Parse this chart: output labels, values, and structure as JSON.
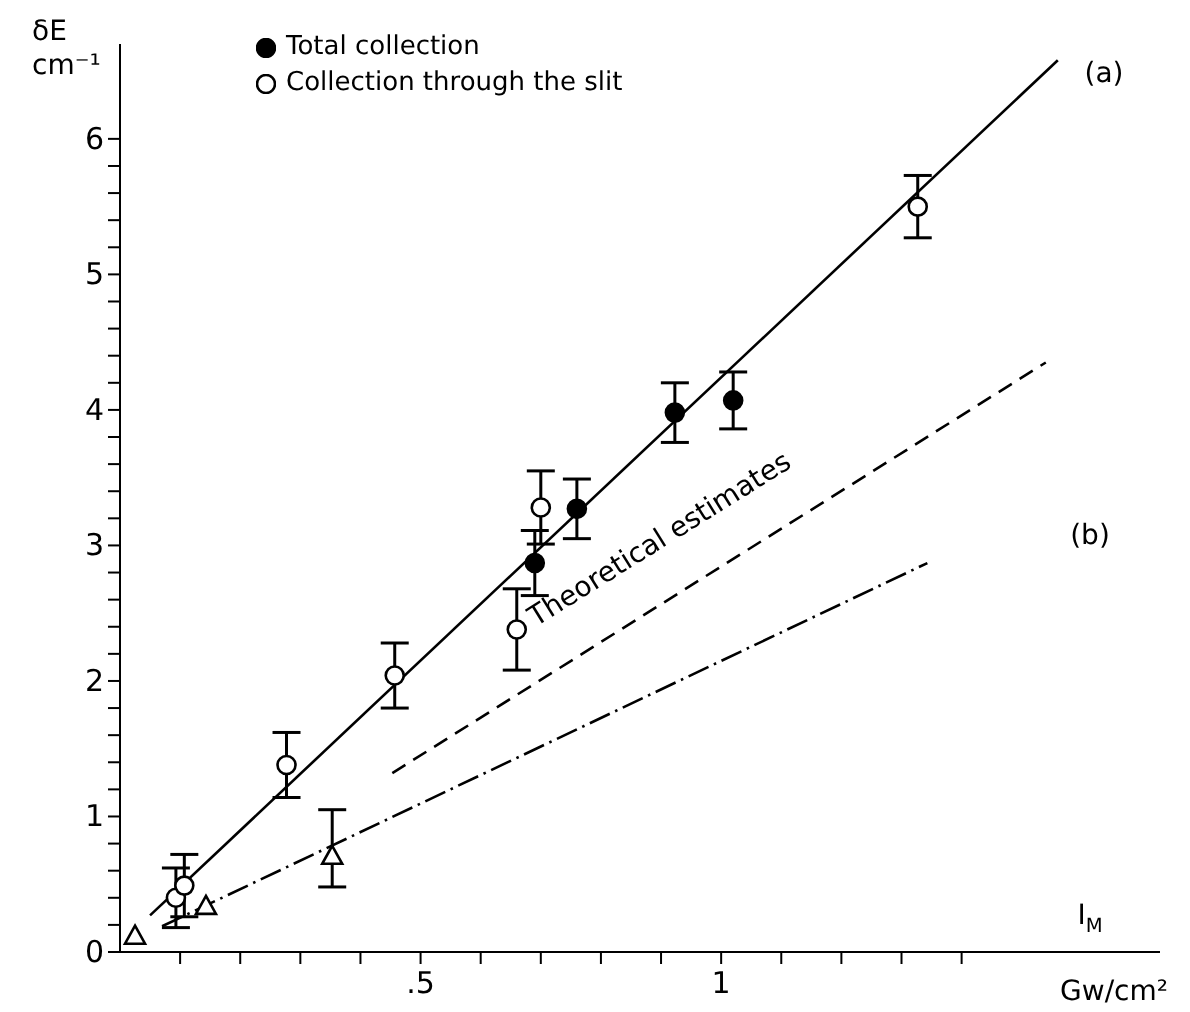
{
  "chart_data": {
    "type": "scatter",
    "xlabel": "Gw/cm²",
    "ylabel": "δE cm⁻¹",
    "xlim": [
      0,
      1.73
    ],
    "ylim": [
      0,
      6.7
    ],
    "xticks": [
      {
        "value": 0.1,
        "label": null
      },
      {
        "value": 0.2,
        "label": null
      },
      {
        "value": 0.3,
        "label": null
      },
      {
        "value": 0.4,
        "label": null
      },
      {
        "value": 0.5,
        "label": ".5"
      },
      {
        "value": 0.6,
        "label": null
      },
      {
        "value": 0.7,
        "label": null
      },
      {
        "value": 0.8,
        "label": null
      },
      {
        "value": 0.9,
        "label": null
      },
      {
        "value": 1,
        "label": "1"
      },
      {
        "value": 1.1,
        "label": null
      },
      {
        "value": 1.2,
        "label": null
      },
      {
        "value": 1.3,
        "label": null
      },
      {
        "value": 1.4,
        "label": null
      }
    ],
    "yticks": [
      0,
      {
        "value": 0.2,
        "label": null
      },
      {
        "value": 0.4,
        "label": null
      },
      {
        "value": 0.6,
        "label": null
      },
      {
        "value": 0.8,
        "label": null
      },
      1,
      {
        "value": 1.2,
        "label": null
      },
      {
        "value": 1.4,
        "label": null
      },
      {
        "value": 1.6,
        "label": null
      },
      {
        "value": 1.8,
        "label": null
      },
      2,
      {
        "value": 2.2,
        "label": null
      },
      {
        "value": 2.4,
        "label": null
      },
      {
        "value": 2.6,
        "label": null
      },
      {
        "value": 2.8,
        "label": null
      },
      3,
      {
        "value": 3.2,
        "label": null
      },
      {
        "value": 3.4,
        "label": null
      },
      {
        "value": 3.6,
        "label": null
      },
      {
        "value": 3.8,
        "label": null
      },
      4,
      {
        "value": 4.2,
        "label": null
      },
      {
        "value": 4.4,
        "label": null
      },
      {
        "value": 4.6,
        "label": null
      },
      {
        "value": 4.8,
        "label": null
      },
      5,
      {
        "value": 5.2,
        "label": null
      },
      {
        "value": 5.4,
        "label": null
      },
      {
        "value": 5.6,
        "label": null
      },
      {
        "value": 5.8,
        "label": null
      },
      6
    ],
    "grid": false,
    "legend": "top left",
    "series": [
      {
        "name": "Total collection",
        "color": "#000000",
        "marker": "circle",
        "x": [
          0.69,
          0.76,
          0.923,
          1.02
        ],
        "values": [
          2.87,
          3.27,
          3.98,
          4.07
        ],
        "errors": [
          0.24,
          0.22,
          0.22,
          0.21
        ]
      },
      {
        "name": "Collection through the slit",
        "color": "#000000",
        "marker": "open circle",
        "x": [
          0.093,
          0.107,
          0.277,
          0.457,
          0.66,
          0.7,
          1.327
        ],
        "values": [
          0.4,
          0.49,
          1.38,
          2.04,
          2.38,
          3.28,
          5.5
        ],
        "errors": [
          0.22,
          0.23,
          0.24,
          0.24,
          0.3,
          0.27,
          0.23
        ]
      },
      {
        "color": "#000000",
        "marker": "triangle",
        "x": [
          0.025,
          0.143,
          0.353
        ],
        "values": [
          0.12,
          0.34,
          0.71
        ],
        "errors": [
          null,
          null,
          [
            0.48,
            1.05
          ]
        ]
      },
      {
        "type": "line",
        "color": "#000000",
        "line_style": "solid",
        "x": [
          0.05,
          1.56
        ],
        "values": [
          0.27,
          6.58
        ]
      },
      {
        "type": "line",
        "color": "#000000",
        "line_style": "dashed",
        "x": [
          0.453,
          1.54
        ],
        "values": [
          1.32,
          4.35
        ]
      },
      {
        "type": "line",
        "color": "#000000",
        "line_style": "dashdot",
        "x": [
          0.07,
          1.343
        ],
        "values": [
          0.19,
          2.87
        ]
      }
    ],
    "annotations": [
      "(a)",
      "(b)",
      "Theoretical estimates",
      "I$_{M}$"
    ]
  }
}
